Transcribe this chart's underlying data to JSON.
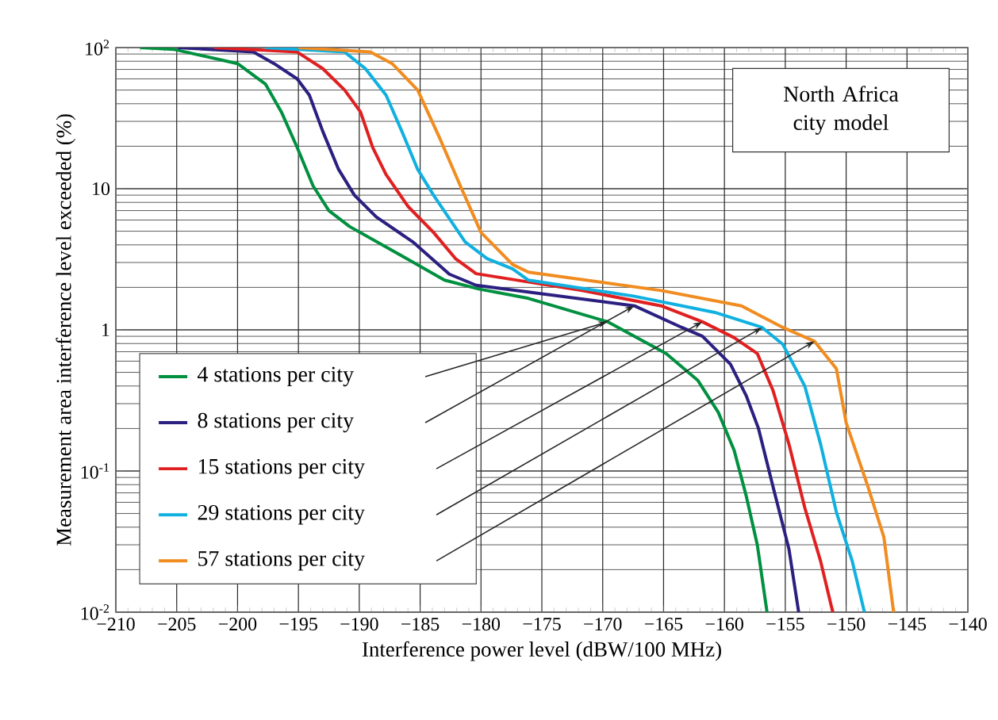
{
  "chart_data": {
    "type": "line",
    "xlabel": "Interference power level (dBW/100 MHz)",
    "ylabel": "Measurement area interference level exceeded (%)",
    "annotations": [
      "North Africa city model"
    ],
    "log": "y",
    "grid": true,
    "legend": "bottom left",
    "xlim": [
      -210,
      -140
    ],
    "ylim": [
      0.01,
      100
    ],
    "xticks": [
      {
        "value": -210,
        "label": "−210"
      },
      {
        "value": -205,
        "label": "−205"
      },
      {
        "value": -200,
        "label": "−200"
      },
      {
        "value": -195,
        "label": "−195"
      },
      {
        "value": -190,
        "label": "−190"
      },
      {
        "value": -185,
        "label": "−185"
      },
      {
        "value": -180,
        "label": "−180"
      },
      {
        "value": -175,
        "label": "−175"
      },
      {
        "value": -170,
        "label": "−170"
      },
      {
        "value": -165,
        "label": "−165"
      },
      {
        "value": -160,
        "label": "−160"
      },
      {
        "value": -155,
        "label": "−155"
      },
      {
        "value": -150,
        "label": "−150"
      },
      {
        "value": -145,
        "label": "−145"
      },
      {
        "value": -140,
        "label": "−140"
      }
    ],
    "yticks": [
      {
        "value": 0.01,
        "label": "10$^{-2}$"
      },
      {
        "value": 0.1,
        "label": "10$^{-1}$"
      },
      1,
      10,
      {
        "value": 100,
        "label": "10$^{2}$"
      }
    ],
    "series": [
      {
        "name": "4 stations per city",
        "color": "#009040",
        "x": [
          -208,
          -205.2,
          -200,
          -197.7,
          -196.4,
          -195.1,
          -193.8,
          -192.5,
          -190.8,
          -186.9,
          -183,
          -180.2,
          -176.1,
          -169.6,
          -164.8,
          -162.2,
          -160.5,
          -159.2,
          -158.2,
          -157.3,
          -156.5
        ],
        "values": [
          100,
          97,
          77,
          55,
          35,
          19.6,
          10.5,
          7,
          5.4,
          3.5,
          2.25,
          1.95,
          1.67,
          1.14,
          0.68,
          0.44,
          0.26,
          0.14,
          0.066,
          0.03,
          0.01
        ]
      },
      {
        "name": "8 stations per city",
        "color": "#2b2080",
        "x": [
          -204.9,
          -198.7,
          -197,
          -195.1,
          -194.1,
          -193,
          -191.7,
          -190.4,
          -188.6,
          -185.6,
          -182.6,
          -180.4,
          -167.4,
          -163.5,
          -161.8,
          -159.5,
          -158.2,
          -157.2,
          -156,
          -154.7,
          -153.9
        ],
        "values": [
          100,
          93,
          77,
          60,
          46,
          25.5,
          13.7,
          9,
          6.3,
          4.2,
          2.48,
          2.07,
          1.48,
          1.04,
          0.9,
          0.57,
          0.34,
          0.2,
          0.077,
          0.028,
          0.01
        ]
      },
      {
        "name": "15 stations per city",
        "color": "#e02020",
        "x": [
          -201.9,
          -195.1,
          -193,
          -191.2,
          -189.9,
          -188.9,
          -187.8,
          -186,
          -183.9,
          -182.1,
          -180.4,
          -171.7,
          -165.2,
          -161.8,
          -159.2,
          -157.3,
          -156,
          -154.7,
          -153.4,
          -152.1,
          -151.1
        ],
        "values": [
          100,
          93,
          71,
          50,
          35,
          19.6,
          12.6,
          7.5,
          4.9,
          3.2,
          2.5,
          1.9,
          1.48,
          1.14,
          0.88,
          0.68,
          0.37,
          0.155,
          0.055,
          0.023,
          0.01
        ]
      },
      {
        "name": "29 stations per city",
        "color": "#10b0e0",
        "x": [
          -197.7,
          -191.2,
          -189.5,
          -187.8,
          -186.5,
          -185.2,
          -183.9,
          -181.3,
          -179.5,
          -177.4,
          -176.1,
          -167.4,
          -160.8,
          -156.9,
          -155.2,
          -153.4,
          -152.1,
          -150.8,
          -149.5,
          -148.5
        ],
        "values": [
          100,
          93,
          71,
          46,
          25.5,
          13.7,
          9,
          4.2,
          3.2,
          2.7,
          2.25,
          1.73,
          1.33,
          1.04,
          0.79,
          0.4,
          0.155,
          0.051,
          0.023,
          0.01
        ]
      },
      {
        "name": "57 stations per city",
        "color": "#f08c20",
        "x": [
          -195,
          -189.1,
          -187.3,
          -185.2,
          -183.4,
          -181.7,
          -180,
          -177.4,
          -176.1,
          -165.2,
          -158.6,
          -155.2,
          -152.6,
          -150.8,
          -150,
          -148.2,
          -146.9,
          -146.1
        ],
        "values": [
          100,
          93,
          77,
          50,
          22.9,
          10.5,
          4.9,
          2.9,
          2.56,
          1.9,
          1.48,
          1.04,
          0.83,
          0.53,
          0.22,
          0.077,
          0.034,
          0.01
        ]
      }
    ]
  }
}
